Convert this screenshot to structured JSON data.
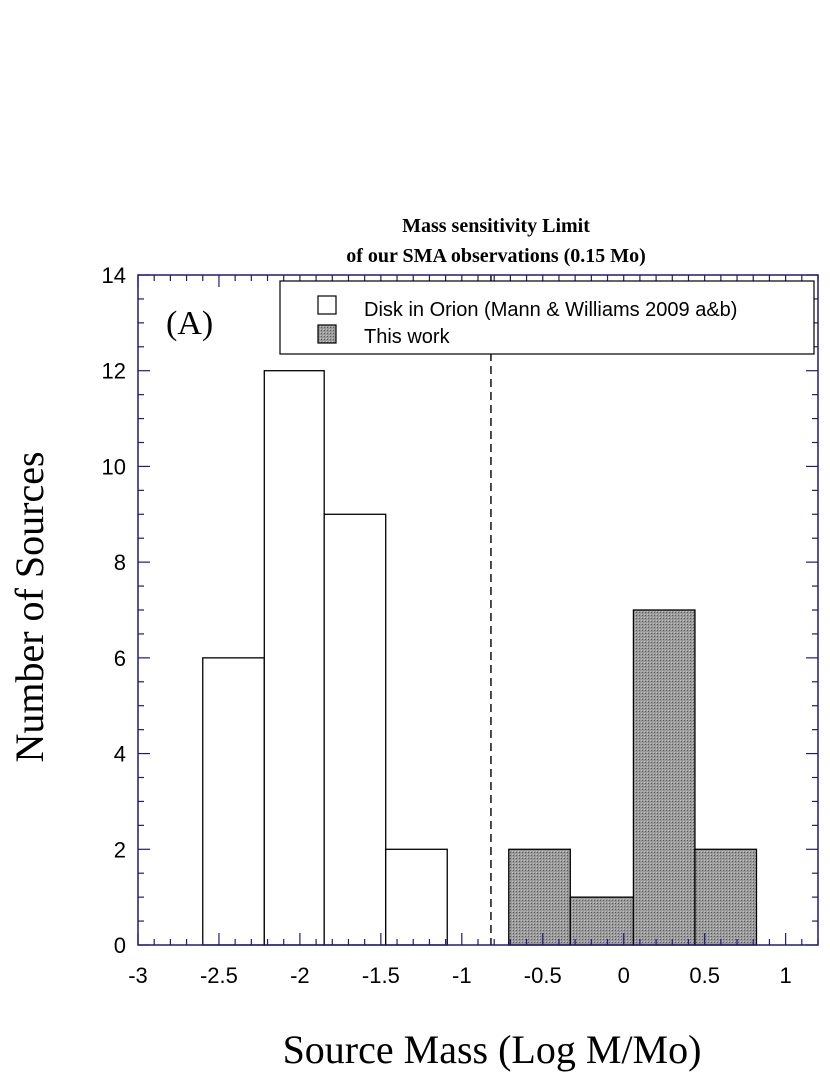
{
  "chart_data": {
    "type": "bar",
    "title_lines": [
      "Mass sensitivity Limit",
      "of our SMA observations (0.15 Mo)"
    ],
    "panel_label": "(A)",
    "xlabel": "Source Mass (Log M/Mo)",
    "ylabel": "Number of Sources",
    "xlim": [
      -3,
      1.2
    ],
    "ylim": [
      0,
      14
    ],
    "x_ticks": [
      {
        "value": -3,
        "label": "-3"
      },
      {
        "value": -2.5,
        "label": "-2.5"
      },
      {
        "value": -2,
        "label": "-2"
      },
      {
        "value": -1.5,
        "label": "-1.5"
      },
      {
        "value": -1,
        "label": "-1"
      },
      {
        "value": -0.5,
        "label": "-0.5"
      },
      {
        "value": 0,
        "label": "0"
      },
      {
        "value": 0.5,
        "label": "0.5"
      },
      {
        "value": 1,
        "label": "1"
      }
    ],
    "y_ticks": [
      {
        "value": 0,
        "label": "0"
      },
      {
        "value": 2,
        "label": "2"
      },
      {
        "value": 4,
        "label": "4"
      },
      {
        "value": 6,
        "label": "6"
      },
      {
        "value": 8,
        "label": "8"
      },
      {
        "value": 10,
        "label": "10"
      },
      {
        "value": 12,
        "label": "12"
      },
      {
        "value": 14,
        "label": "14"
      }
    ],
    "sensitivity_limit": -0.82,
    "series": [
      {
        "name": "Disk in Orion (Mann & Williams 2009 a&b)",
        "fill": "#ffffff",
        "bins": [
          {
            "x0": -2.6,
            "x1": -2.22,
            "count": 6
          },
          {
            "x0": -2.22,
            "x1": -1.85,
            "count": 12
          },
          {
            "x0": -1.85,
            "x1": -1.47,
            "count": 9
          },
          {
            "x0": -1.47,
            "x1": -1.09,
            "count": 2
          }
        ]
      },
      {
        "name": "This work",
        "fill": "#8f8f8f",
        "bins": [
          {
            "x0": -0.71,
            "x1": -0.33,
            "count": 2
          },
          {
            "x0": -0.33,
            "x1": 0.06,
            "count": 1
          },
          {
            "x0": 0.06,
            "x1": 0.44,
            "count": 7
          },
          {
            "x0": 0.44,
            "x1": 0.82,
            "count": 2
          }
        ]
      }
    ],
    "legend_position": "top-right",
    "colors": {
      "axis": "#1c1c7a",
      "bar_edge": "#000000",
      "limit_line": "#000000"
    }
  }
}
